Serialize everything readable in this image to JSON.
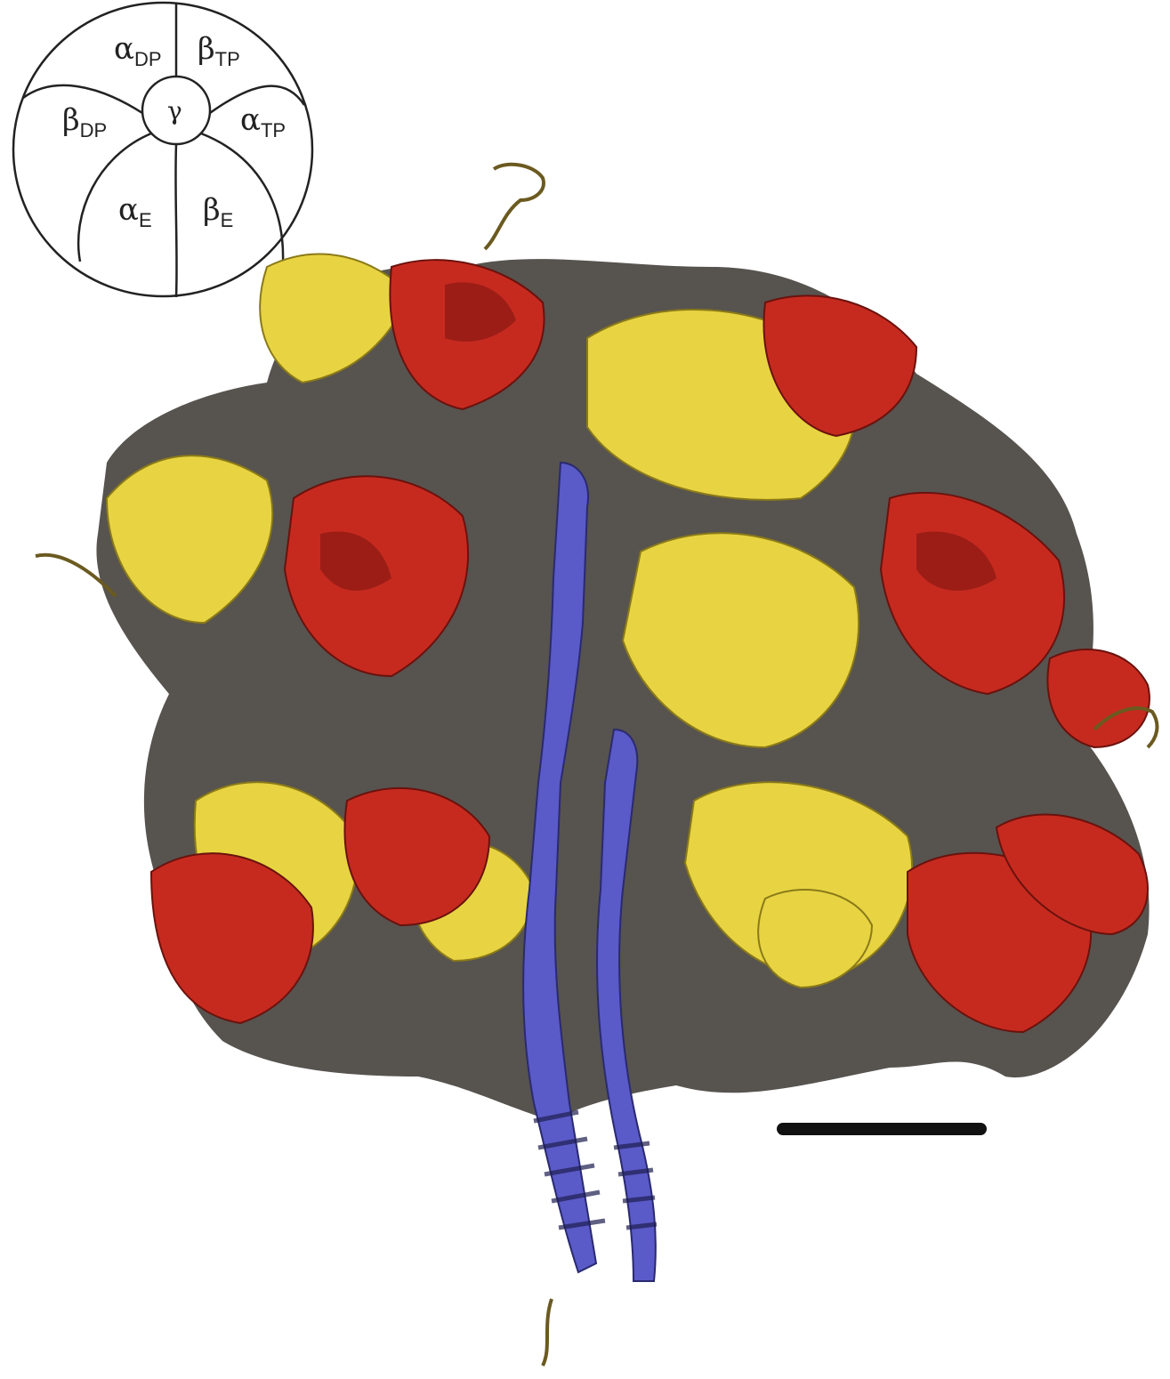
{
  "inset": {
    "labels": {
      "alpha_dp": {
        "main": "α",
        "sub": "DP"
      },
      "beta_tp": {
        "main": "β",
        "sub": "TP"
      },
      "beta_dp": {
        "main": "β",
        "sub": "DP"
      },
      "gamma": {
        "main": "γ"
      },
      "alpha_tp": {
        "main": "α",
        "sub": "TP"
      },
      "alpha_e": {
        "main": "α",
        "sub": "E"
      },
      "beta_e": {
        "main": "β",
        "sub": "E"
      }
    },
    "line_color": "#222222"
  },
  "structure": {
    "colors": {
      "alpha": "#c62a1f",
      "alpha_dark": "#8e1a14",
      "beta": "#e8d442",
      "beta_dark": "#b7a52a",
      "gamma": "#5a5ac8",
      "shadow": "#2b2b2b"
    }
  },
  "scale_bar": {
    "color": "#111111"
  }
}
